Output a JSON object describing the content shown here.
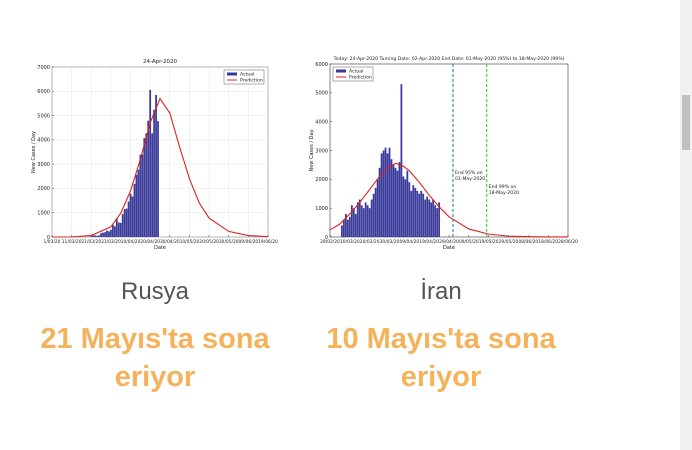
{
  "cards": [
    {
      "country": "Rusya",
      "headline": "21 Mayıs'ta sona eriyor"
    },
    {
      "country": "İran",
      "headline": "10 Mayıs'ta sona eriyor"
    }
  ],
  "chart_data": [
    {
      "type": "bar",
      "title": "24-Apr-2020",
      "x_label": "Date",
      "y_label": "New Cases / Day",
      "xlim": [
        0,
        110
      ],
      "ylim": [
        0,
        7000
      ],
      "grid": true,
      "legend": "top-right",
      "yticks": [
        0,
        1000,
        2000,
        3000,
        4000,
        5000,
        6000,
        7000
      ],
      "xticks": [
        {
          "value": 0,
          "label": "1/03/20"
        },
        {
          "value": 10,
          "label": "11/03/20"
        },
        {
          "value": 20,
          "label": "21/03/20"
        },
        {
          "value": 30,
          "label": "31/03/20"
        },
        {
          "value": 40,
          "label": "10/04/20"
        },
        {
          "value": 50,
          "label": "20/04/20"
        },
        {
          "value": 60,
          "label": "30/04/20"
        },
        {
          "value": 70,
          "label": "10/05/20"
        },
        {
          "value": 80,
          "label": "20/05/20"
        },
        {
          "value": 90,
          "label": "30/05/20"
        },
        {
          "value": 100,
          "label": "09/06/20"
        },
        {
          "value": 110,
          "label": "19/06/20"
        }
      ],
      "series": [
        {
          "name": "Actual",
          "type": "bar",
          "color": "#3a3a9a",
          "x": [
            20,
            21,
            22,
            23,
            24,
            25,
            26,
            27,
            28,
            29,
            30,
            31,
            32,
            33,
            34,
            35,
            36,
            37,
            38,
            39,
            40,
            41,
            42,
            43,
            44,
            45,
            46,
            47,
            48,
            49,
            50,
            51,
            52,
            53,
            54
          ],
          "values": [
            50,
            60,
            70,
            50,
            70,
            160,
            180,
            200,
            270,
            230,
            300,
            500,
            440,
            770,
            600,
            580,
            950,
            1150,
            1170,
            1460,
            1780,
            1670,
            2190,
            2560,
            2770,
            3390,
            3390,
            4070,
            4270,
            4790,
            6060,
            4270,
            5240,
            5850,
            4770
          ]
        },
        {
          "name": "Prediction",
          "type": "line",
          "color": "#e02020",
          "x": [
            0,
            10,
            20,
            30,
            35,
            40,
            45,
            50,
            55,
            60,
            65,
            70,
            75,
            80,
            90,
            100,
            110
          ],
          "values": [
            0,
            5,
            60,
            420,
            980,
            1900,
            3200,
            4700,
            5700,
            5100,
            3700,
            2400,
            1400,
            780,
            230,
            60,
            15
          ]
        }
      ]
    },
    {
      "type": "bar",
      "title": "Today: 24-Apr-2020   Turning Date: 02-Apr-2020   End Date: 01-May-2020 (95%) to 18-May-2020 (99%)",
      "x_label": "Date",
      "y_label": "New Cases / Day",
      "xlim": [
        0,
        120
      ],
      "ylim": [
        0,
        6000
      ],
      "grid": false,
      "legend": "top-left",
      "yticks": [
        0,
        1000,
        2000,
        3000,
        4000,
        5000,
        6000
      ],
      "xticks": [
        {
          "value": 0,
          "label": "29/02/20"
        },
        {
          "value": 10,
          "label": "10/03/20"
        },
        {
          "value": 20,
          "label": "20/03/20"
        },
        {
          "value": 30,
          "label": "30/03/20"
        },
        {
          "value": 40,
          "label": "09/04/20"
        },
        {
          "value": 50,
          "label": "19/04/20"
        },
        {
          "value": 60,
          "label": "29/04/20"
        },
        {
          "value": 70,
          "label": "09/05/20"
        },
        {
          "value": 80,
          "label": "19/05/20"
        },
        {
          "value": 90,
          "label": "29/05/20"
        },
        {
          "value": 100,
          "label": "08/06/20"
        },
        {
          "value": 110,
          "label": "18/06/20"
        },
        {
          "value": 120,
          "label": "28/06/20"
        }
      ],
      "vlines": [
        {
          "x": 62,
          "color": "#2a7fc0",
          "label_lines": [
            "End 95% on",
            "01-May-2020"
          ]
        },
        {
          "x": 79,
          "color": "#3cc83c",
          "label_lines": [
            "End 99% on",
            "18-May-2020"
          ]
        }
      ],
      "series": [
        {
          "name": "Actual",
          "type": "bar",
          "color": "#3a3a9a",
          "x": [
            6,
            7,
            8,
            9,
            10,
            11,
            12,
            13,
            14,
            15,
            16,
            17,
            18,
            19,
            20,
            21,
            22,
            23,
            24,
            25,
            26,
            27,
            28,
            29,
            30,
            31,
            32,
            33,
            34,
            35,
            36,
            37,
            38,
            39,
            40,
            41,
            42,
            43,
            44,
            45,
            46,
            47,
            48,
            49,
            50,
            51,
            52,
            53,
            54,
            55
          ],
          "values": [
            400,
            600,
            800,
            600,
            700,
            1100,
            1000,
            800,
            1200,
            1300,
            1100,
            1000,
            1200,
            1100,
            1000,
            1300,
            1500,
            1700,
            2000,
            2400,
            2900,
            3000,
            3100,
            2900,
            3100,
            2700,
            2500,
            2400,
            2300,
            2600,
            5300,
            2100,
            2000,
            2300,
            1900,
            1600,
            1800,
            1700,
            1600,
            1500,
            1600,
            1500,
            1300,
            1400,
            1300,
            1200,
            1300,
            1100,
            1000,
            1200
          ]
        },
        {
          "name": "Prediction",
          "type": "line",
          "color": "#e02020",
          "x": [
            0,
            5,
            10,
            15,
            20,
            25,
            30,
            33,
            36,
            40,
            45,
            50,
            55,
            60,
            70,
            80,
            90,
            100,
            110,
            120
          ],
          "values": [
            250,
            450,
            800,
            1200,
            1650,
            2100,
            2450,
            2550,
            2500,
            2300,
            1900,
            1450,
            1050,
            700,
            280,
            100,
            30,
            10,
            3,
            1
          ]
        }
      ]
    }
  ]
}
